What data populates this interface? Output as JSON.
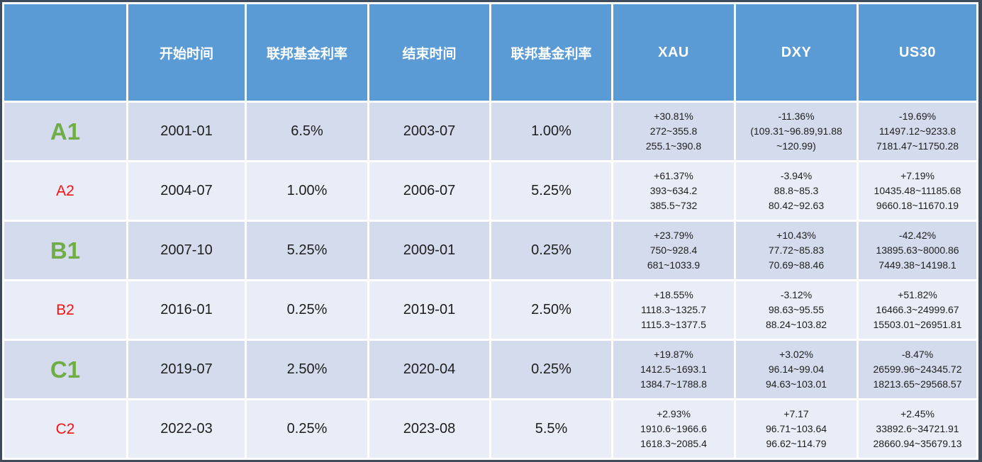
{
  "colors": {
    "frame": "#3F4A5B",
    "header_bg": "#5B9BD5",
    "header_text": "#FFFFFF",
    "row_dark": "#D3DBEC",
    "row_light": "#E9EDF7",
    "major_label": "#70AD47",
    "minor_label": "#FE1010",
    "cell_text": "#1E1E1E"
  },
  "table": {
    "columns": [
      "",
      "开始时间",
      "联邦基金利率",
      "结束时间",
      "联邦基金利率",
      "XAU",
      "DXY",
      "US30"
    ],
    "rows": [
      {
        "label": "A1",
        "label_style": "major",
        "start": "2001-01",
        "start_rate": "6.5%",
        "end": "2003-07",
        "end_rate": "1.00%",
        "xau": [
          "+30.81%",
          "272~355.8",
          "255.1~390.8"
        ],
        "dxy": [
          "-11.36%",
          "(109.31~96.89,91.88",
          "~120.99)"
        ],
        "us30": [
          "-19.69%",
          "11497.12~9233.8",
          "7181.47~11750.28"
        ]
      },
      {
        "label": "A2",
        "label_style": "minor",
        "start": "2004-07",
        "start_rate": "1.00%",
        "end": "2006-07",
        "end_rate": "5.25%",
        "xau": [
          "+61.37%",
          "393~634.2",
          "385.5~732"
        ],
        "dxy": [
          "-3.94%",
          "88.8~85.3",
          "80.42~92.63"
        ],
        "us30": [
          "+7.19%",
          "10435.48~11185.68",
          "9660.18~11670.19"
        ]
      },
      {
        "label": "B1",
        "label_style": "major",
        "start": "2007-10",
        "start_rate": "5.25%",
        "end": "2009-01",
        "end_rate": "0.25%",
        "xau": [
          "+23.79%",
          "750~928.4",
          "681~1033.9"
        ],
        "dxy": [
          "+10.43%",
          "77.72~85.83",
          "70.69~88.46"
        ],
        "us30": [
          "-42.42%",
          "13895.63~8000.86",
          "7449.38~14198.1"
        ]
      },
      {
        "label": "B2",
        "label_style": "minor",
        "start": "2016-01",
        "start_rate": "0.25%",
        "end": "2019-01",
        "end_rate": "2.50%",
        "xau": [
          "+18.55%",
          "1118.3~1325.7",
          "1115.3~1377.5"
        ],
        "dxy": [
          "-3.12%",
          "98.63~95.55",
          "88.24~103.82"
        ],
        "us30": [
          "+51.82%",
          "16466.3~24999.67",
          "15503.01~26951.81"
        ]
      },
      {
        "label": "C1",
        "label_style": "major",
        "start": "2019-07",
        "start_rate": "2.50%",
        "end": "2020-04",
        "end_rate": "0.25%",
        "xau": [
          "+19.87%",
          "1412.5~1693.1",
          "1384.7~1788.8"
        ],
        "dxy": [
          "+3.02%",
          "96.14~99.04",
          "94.63~103.01"
        ],
        "us30": [
          "-8.47%",
          "26599.96~24345.72",
          "18213.65~29568.57"
        ]
      },
      {
        "label": "C2",
        "label_style": "minor",
        "start": "2022-03",
        "start_rate": "0.25%",
        "end": "2023-08",
        "end_rate": "5.5%",
        "xau": [
          "+2.93%",
          "1910.6~1966.6",
          "1618.3~2085.4"
        ],
        "dxy": [
          "+7.17",
          "96.71~103.64",
          "96.62~114.79"
        ],
        "us30": [
          "+2.45%",
          "33892.6~34721.91",
          "28660.94~35679.13"
        ]
      }
    ]
  }
}
